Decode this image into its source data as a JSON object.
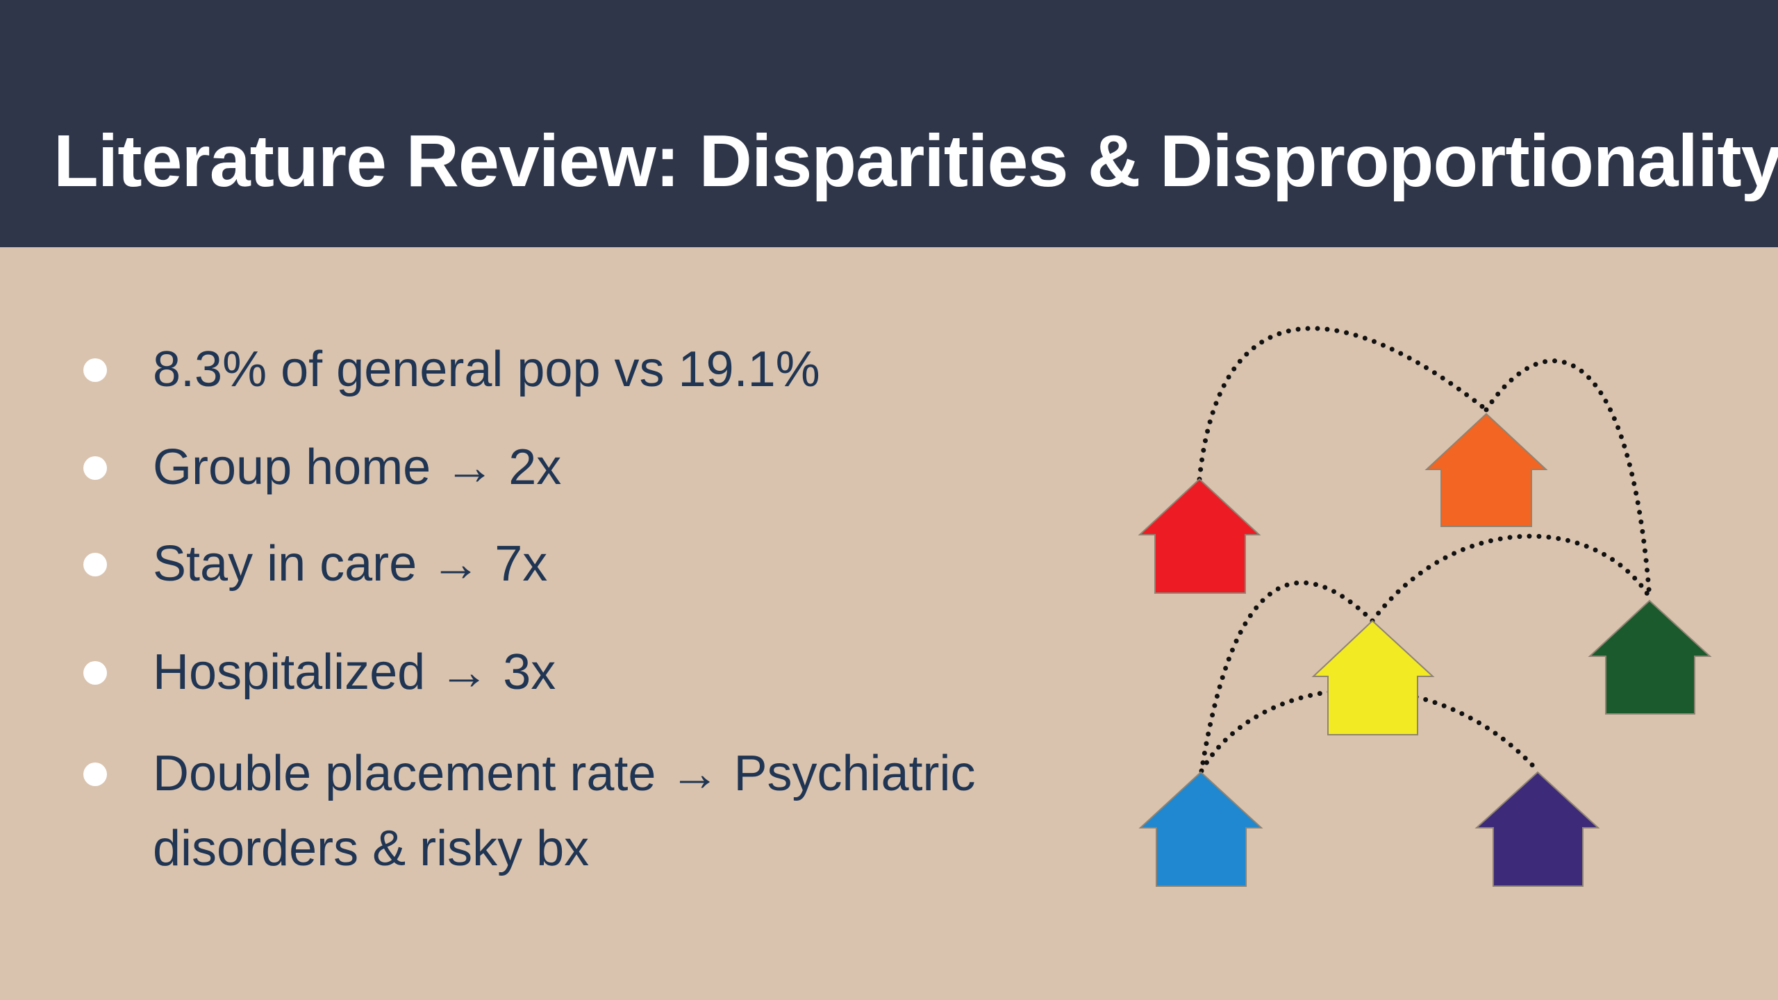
{
  "slide": {
    "title": "Literature Review: Disparities & Disproportionality",
    "bullets": [
      {
        "text": "8.3% of general pop vs 19.1%"
      },
      {
        "text": "Group home → 2x"
      },
      {
        "text": "Stay in care → 7x"
      },
      {
        "text": "Hospitalized → 3x"
      },
      {
        "line1": "Double placement rate → Psychiatric",
        "line2": "disorders & risky bx"
      }
    ]
  },
  "illustration": {
    "houses": [
      {
        "name": "red",
        "color": "#ed1c24"
      },
      {
        "name": "orange",
        "color": "#f26522"
      },
      {
        "name": "yellow",
        "color": "#f2ea22"
      },
      {
        "name": "green",
        "color": "#1a5a2c"
      },
      {
        "name": "blue",
        "color": "#1f88d0"
      },
      {
        "name": "purple",
        "color": "#3d2a78"
      }
    ],
    "connector_style": "dotted"
  },
  "colors": {
    "title_bar": "#2f364a",
    "background": "#d9c3ae",
    "title_text": "#ffffff",
    "body_text": "#1f3553",
    "bullet_dot": "#ffffff"
  }
}
